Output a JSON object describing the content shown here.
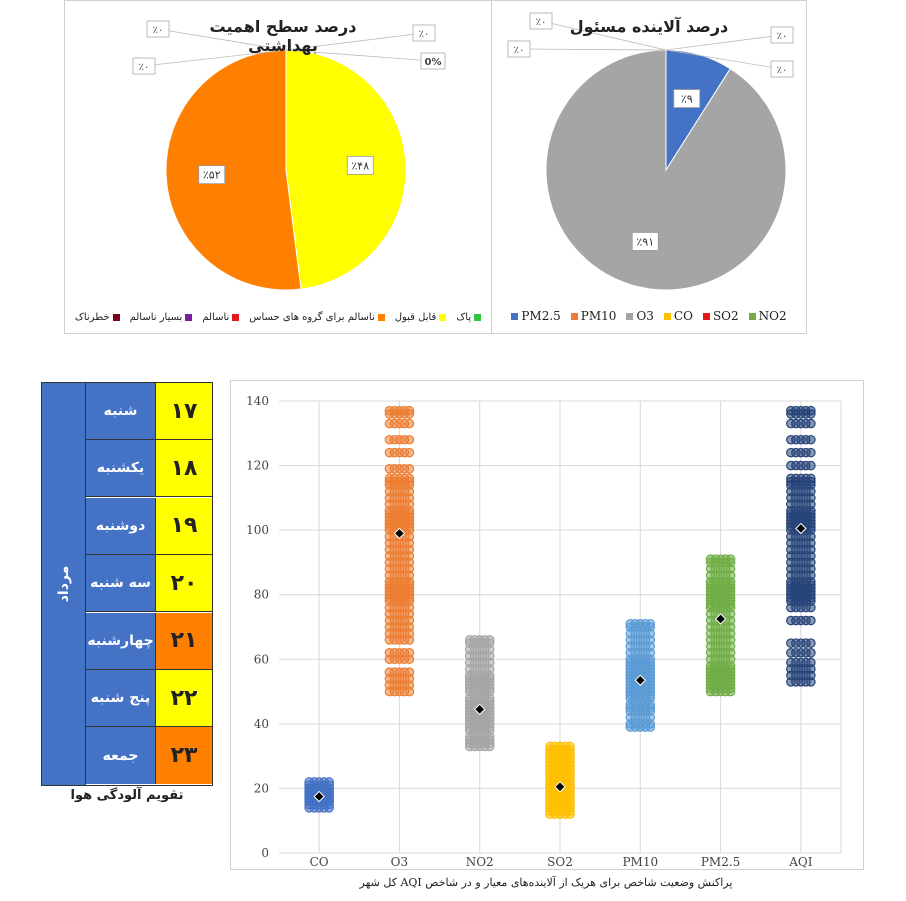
{
  "chart_data": [
    {
      "type": "pie",
      "title": "درصد سطح اهمیت بهداشتی",
      "legend": [
        {
          "name": "پاک",
          "color": "#2ec73f"
        },
        {
          "name": "قابل قبول",
          "color": "#ffff00"
        },
        {
          "name": "ناسالم برای گروه های حساس",
          "color": "#ff8000"
        },
        {
          "name": "ناسالم",
          "color": "#e31a1c"
        },
        {
          "name": "بسیار ناسالم",
          "color": "#7b1fa2"
        },
        {
          "name": "خطرناک",
          "color": "#800020"
        }
      ],
      "slices": [
        {
          "name": "قابل قبول",
          "value": 48,
          "label": "٪۴۸",
          "color": "#ffff00"
        },
        {
          "name": "ناسالم برای گروه های حساس",
          "value": 52,
          "label": "٪۵۲",
          "color": "#ff8000"
        }
      ],
      "zero_callouts": [
        "٪۰",
        "٪۰",
        "٪۰",
        "0%"
      ],
      "legend_position": "bottom"
    },
    {
      "type": "pie",
      "title": "درصد آلاینده مسئول",
      "legend": [
        {
          "name": "PM2.5",
          "color": "#4472c4"
        },
        {
          "name": "PM10",
          "color": "#ed7d31"
        },
        {
          "name": "O3",
          "color": "#a5a5a5"
        },
        {
          "name": "CO",
          "color": "#ffc000"
        },
        {
          "name": "SO2",
          "color": "#e31a1c"
        },
        {
          "name": "NO2",
          "color": "#70ad47"
        }
      ],
      "slices": [
        {
          "name": "PM2.5",
          "value": 9,
          "label": "٪۹",
          "color": "#4472c4"
        },
        {
          "name": "O3",
          "value": 91,
          "label": "٪۹۱",
          "color": "#a5a5a5"
        }
      ],
      "zero_callouts": [
        "٪۰",
        "٪۰",
        "٪۰",
        "٪۰"
      ],
      "legend_position": "bottom"
    },
    {
      "type": "scatter",
      "title": "پراکنش وضعیت شاخص برای هریک از آلاینده‌های معیار و در شاخص AQI کل شهر",
      "categories": [
        "CO",
        "O3",
        "NO2",
        "SO2",
        "PM10",
        "PM2.5",
        "AQI"
      ],
      "ylim": [
        0,
        140
      ],
      "yticks": [
        0,
        20,
        40,
        60,
        80,
        100,
        120,
        140
      ],
      "grid": true,
      "series": [
        {
          "category": "CO",
          "color": "#4472c4",
          "mean": 17.5,
          "values": [
            14,
            15,
            16,
            16,
            17,
            17,
            18,
            18,
            19,
            19,
            20,
            20,
            21,
            22
          ]
        },
        {
          "category": "O3",
          "color": "#ed7d31",
          "mean": 99,
          "values": [
            50,
            52,
            54,
            56,
            60,
            62,
            66,
            68,
            70,
            72,
            74,
            76,
            78,
            79,
            80,
            81,
            82,
            83,
            84,
            86,
            88,
            90,
            92,
            94,
            96,
            98,
            100,
            101,
            102,
            103,
            104,
            105,
            106,
            108,
            110,
            112,
            114,
            115,
            116,
            119,
            124,
            128,
            133,
            136,
            137
          ]
        },
        {
          "category": "NO2",
          "color": "#a5a5a5",
          "mean": 44.5,
          "values": [
            33,
            34,
            35,
            36,
            38,
            39,
            40,
            41,
            42,
            43,
            44,
            45,
            46,
            47,
            48,
            50,
            51,
            52,
            53,
            54,
            55,
            57,
            59,
            61,
            63,
            65,
            66
          ]
        },
        {
          "category": "SO2",
          "color": "#ffc000",
          "mean": 20.5,
          "values": [
            12,
            13,
            14,
            15,
            16,
            17,
            18,
            19,
            20,
            21,
            22,
            23,
            24,
            25,
            26,
            27,
            28,
            29,
            30,
            31,
            32,
            33
          ]
        },
        {
          "category": "PM10",
          "color": "#5b9bd5",
          "mean": 53.5,
          "values": [
            39,
            40,
            42,
            44,
            45,
            46,
            48,
            49,
            50,
            51,
            52,
            53,
            54,
            55,
            56,
            57,
            58,
            59,
            60,
            62,
            64,
            66,
            68,
            70,
            71
          ]
        },
        {
          "category": "PM2.5",
          "color": "#70ad47",
          "mean": 72.5,
          "values": [
            50,
            51,
            52,
            53,
            54,
            55,
            56,
            57,
            58,
            60,
            62,
            64,
            66,
            68,
            70,
            72,
            74,
            76,
            77,
            78,
            79,
            80,
            81,
            82,
            83,
            84,
            86,
            88,
            90,
            91
          ]
        },
        {
          "category": "AQI",
          "color": "#264478",
          "mean": 100.5,
          "values": [
            53,
            55,
            57,
            59,
            62,
            65,
            72,
            76,
            78,
            79,
            80,
            81,
            82,
            83,
            84,
            86,
            88,
            90,
            92,
            94,
            96,
            98,
            100,
            101,
            102,
            103,
            104,
            105,
            106,
            108,
            110,
            112,
            114,
            115,
            116,
            120,
            124,
            128,
            133,
            136,
            137
          ]
        }
      ]
    }
  ],
  "calendar": {
    "month": "مرداد",
    "caption": "تقویم آلودگی هوا",
    "days": [
      {
        "day": "شنبه",
        "date": "۱۷",
        "color": "#ffff00"
      },
      {
        "day": "یکشنبه",
        "date": "۱۸",
        "color": "#ffff00"
      },
      {
        "day": "دوشنبه",
        "date": "۱۹",
        "color": "#ffff00"
      },
      {
        "day": "سه شنبه",
        "date": "۲۰",
        "color": "#ffff00"
      },
      {
        "day": "چهارشنبه",
        "date": "۲۱",
        "color": "#ff8000"
      },
      {
        "day": "پنج شنبه",
        "date": "۲۲",
        "color": "#ffff00"
      },
      {
        "day": "جمعه",
        "date": "۲۳",
        "color": "#ff8000"
      }
    ]
  }
}
